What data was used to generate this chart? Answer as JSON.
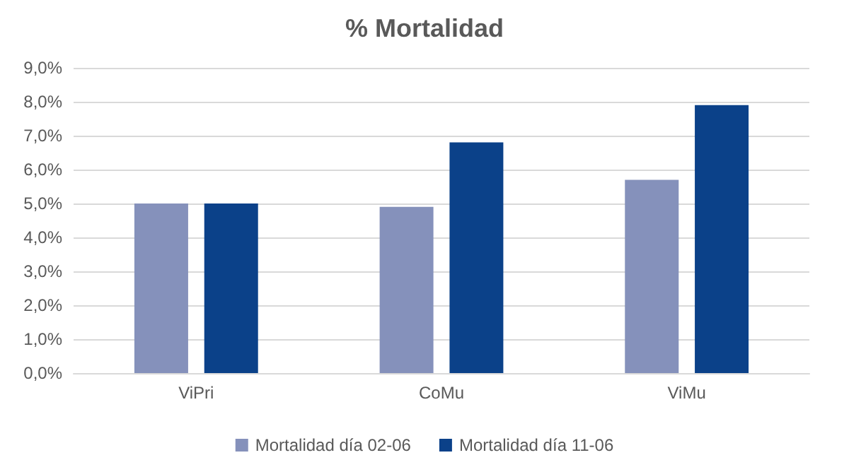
{
  "chart_data": {
    "type": "bar",
    "title": "% Mortalidad",
    "categories": [
      "ViPri",
      "CoMu",
      "ViMu"
    ],
    "series": [
      {
        "name": "Mortalidad día 02-06",
        "color": "#8591bb",
        "values": [
          5.0,
          4.9,
          5.7
        ]
      },
      {
        "name": "Mortalidad día 11-06",
        "color": "#0b4189",
        "values": [
          5.0,
          6.8,
          7.9
        ]
      }
    ],
    "ylim": [
      0,
      9
    ],
    "yticks": [
      {
        "value": 0,
        "label": "0,0%"
      },
      {
        "value": 1,
        "label": "1,0%"
      },
      {
        "value": 2,
        "label": "2,0%"
      },
      {
        "value": 3,
        "label": "3,0%"
      },
      {
        "value": 4,
        "label": "4,0%"
      },
      {
        "value": 5,
        "label": "5,0%"
      },
      {
        "value": 6,
        "label": "6,0%"
      },
      {
        "value": 7,
        "label": "7,0%"
      },
      {
        "value": 8,
        "label": "8,0%"
      },
      {
        "value": 9,
        "label": "9,0%"
      }
    ],
    "grid": "y",
    "legend": "bottom"
  }
}
